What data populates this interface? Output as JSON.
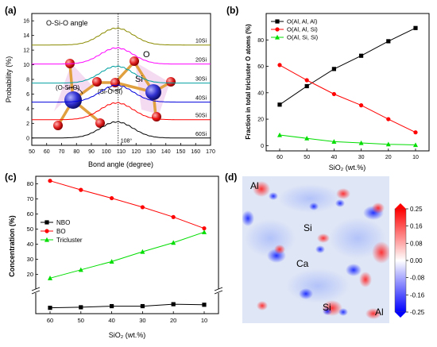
{
  "figure": {
    "panels": {
      "a": {
        "letter": "(a)"
      },
      "b": {
        "letter": "(b)"
      },
      "c": {
        "letter": "(c)"
      },
      "d": {
        "letter": "(d)"
      }
    }
  },
  "chart_data": [
    {
      "panel": "a",
      "type": "line",
      "title": "O-Si-O angle",
      "xlabel": "Bond angle (degree)",
      "ylabel": "Probability (%)",
      "xlim": [
        50,
        170
      ],
      "ylim": [
        -1,
        17
      ],
      "xticks": [
        50,
        60,
        70,
        80,
        90,
        100,
        110,
        120,
        130,
        140,
        150,
        160,
        170
      ],
      "yticks": [
        0,
        2,
        4,
        6,
        8,
        10,
        12,
        14,
        16
      ],
      "reference_line": {
        "x": 108,
        "label": "108°",
        "style": "dotted"
      },
      "series": [
        {
          "name": "10Si",
          "color": "#8b8b00",
          "baseline": 12.7,
          "peak_x": 107,
          "peak_height": 2.3
        },
        {
          "name": "20Si",
          "color": "#ff00ff",
          "baseline": 10.1,
          "peak_x": 107,
          "peak_height": 2.2
        },
        {
          "name": "30Si",
          "color": "#00a0a0",
          "baseline": 7.5,
          "peak_x": 107,
          "peak_height": 2.3
        },
        {
          "name": "40Si",
          "color": "#0000dd",
          "baseline": 4.9,
          "peak_x": 107,
          "peak_height": 2.3
        },
        {
          "name": "50Si",
          "color": "#ff0000",
          "baseline": 2.5,
          "peak_x": 107,
          "peak_height": 2.3
        },
        {
          "name": "60Si",
          "color": "#000000",
          "baseline": 0.0,
          "peak_x": 107,
          "peak_height": 2.2
        }
      ],
      "inset_labels": {
        "o": "O",
        "si": "Si",
        "osio": "(O-Si-O)",
        "siosi": "(Si-O-Si)"
      }
    },
    {
      "panel": "b",
      "type": "line",
      "xlabel": "SiO₂ (wt.%)",
      "ylabel": "Fraction in total tricluster O atoms (%)",
      "categories": [
        60,
        50,
        40,
        30,
        20,
        10
      ],
      "ylim": [
        -4,
        100
      ],
      "yticks": [
        0,
        20,
        40,
        60,
        80
      ],
      "legend": "top-left",
      "series": [
        {
          "name": "O(Al, Al, Al)",
          "color": "#000000",
          "marker": "square",
          "values": [
            31,
            45,
            58,
            68,
            79,
            89
          ]
        },
        {
          "name": "O(Al, Al, Si)",
          "color": "#ff0000",
          "marker": "circle",
          "values": [
            61,
            49.5,
            39,
            30.5,
            20,
            10
          ]
        },
        {
          "name": "O(Al, Si, Si)",
          "color": "#00dd00",
          "marker": "triangle",
          "values": [
            8,
            5.5,
            3,
            2,
            1,
            0.5
          ]
        }
      ]
    },
    {
      "panel": "c",
      "type": "line",
      "xlabel": "SiO₂ (wt.%)",
      "ylabel": "Concentration (%)",
      "categories": [
        60,
        50,
        40,
        30,
        20,
        10
      ],
      "axis_break": true,
      "ylim_upper": [
        15,
        85
      ],
      "yticks_upper": [
        20,
        30,
        40,
        50,
        60,
        70,
        80
      ],
      "ylim_lower": [
        0,
        3
      ],
      "legend": "middle-left",
      "series": [
        {
          "name": "NBO",
          "color": "#000000",
          "marker": "square",
          "values": [
            1.05,
            1.15,
            1.35,
            1.35,
            1.7,
            1.6
          ]
        },
        {
          "name": "BO",
          "color": "#ff0000",
          "marker": "circle",
          "values": [
            82,
            76,
            70.5,
            64.5,
            58,
            50.5
          ]
        },
        {
          "name": "Tricluster",
          "color": "#00dd00",
          "marker": "triangle",
          "values": [
            17.5,
            23,
            28.5,
            35,
            41,
            48
          ]
        }
      ]
    },
    {
      "panel": "d",
      "type": "heatmap",
      "colorbar": {
        "ticks": [
          "0.25",
          "0.16",
          "0.08",
          "0.00",
          "-0.08",
          "-0.16",
          "-0.25"
        ],
        "min": -0.25,
        "max": 0.25,
        "colors": [
          "#0000ff",
          "#ffffff",
          "#ff0000"
        ]
      },
      "atom_labels": [
        "Al",
        "Si",
        "Ca",
        "Si",
        "Al"
      ]
    }
  ]
}
